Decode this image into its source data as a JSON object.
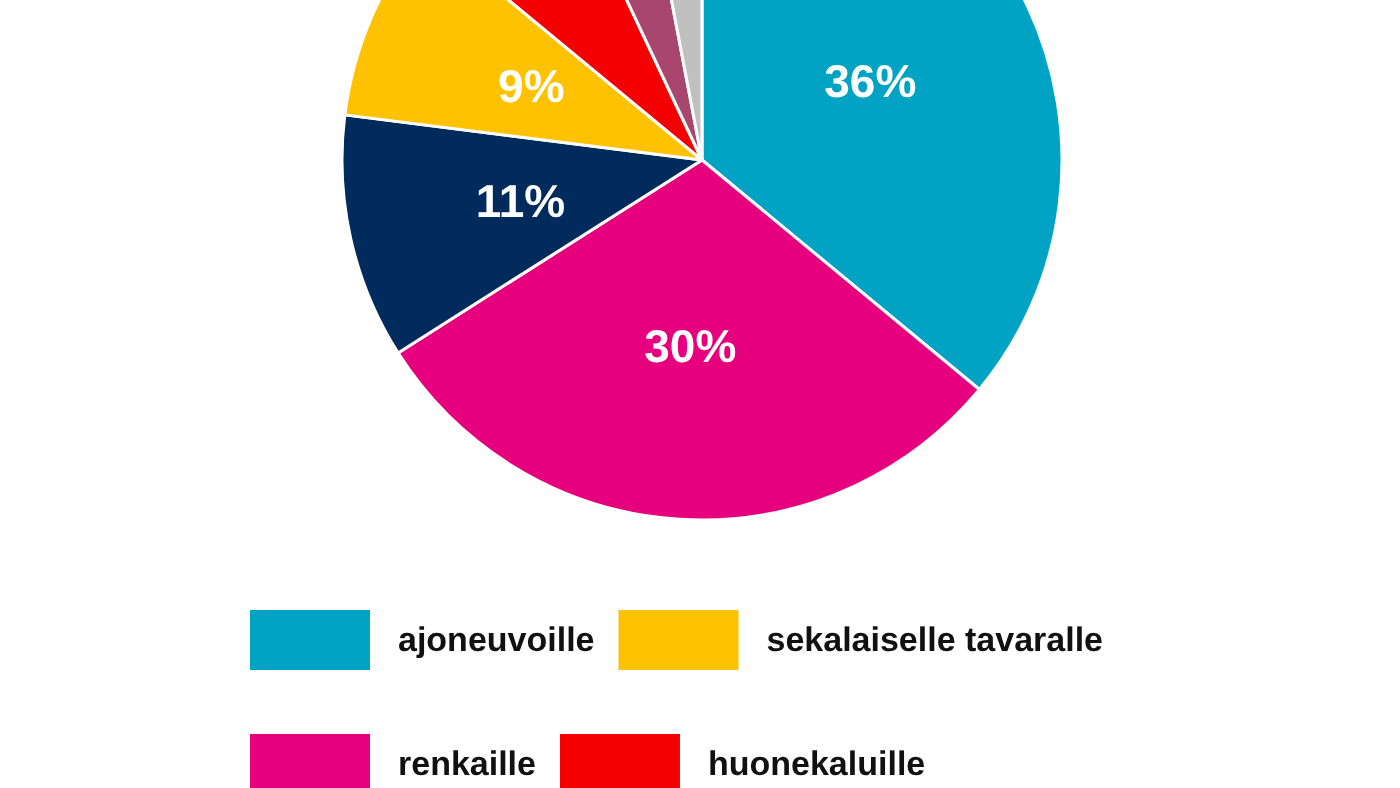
{
  "chart_data": {
    "type": "pie",
    "categories": [
      "ajoneuvoille",
      "renkaille",
      null,
      "sekalaiselle tavaralle",
      "huonekaluille",
      null,
      null
    ],
    "values": [
      36,
      30,
      11,
      9,
      7,
      4,
      3
    ],
    "colors": [
      "#00a3c4",
      "#e6007e",
      "#002b5c",
      "#ffc200",
      "#f50000",
      "#a8466e",
      "#c0c0c0"
    ],
    "value_labels": [
      "36%",
      "30%",
      "11%",
      "9%",
      null,
      null,
      null
    ],
    "legend": "bottom"
  }
}
